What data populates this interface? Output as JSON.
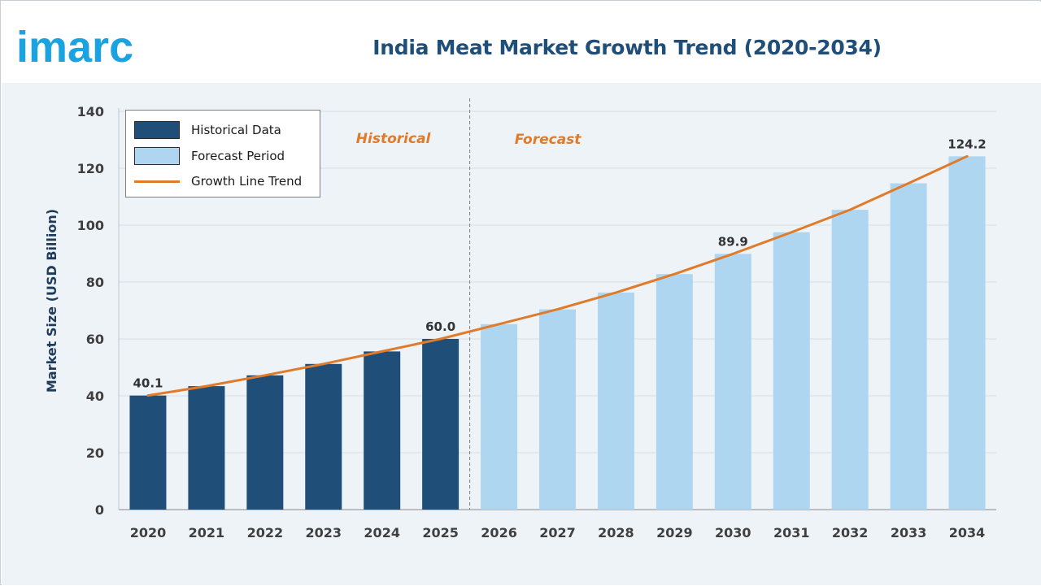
{
  "brand": {
    "name": "imarc",
    "color": "#1aa3e0"
  },
  "chart_data": {
    "type": "bar",
    "title": "India Meat Market Growth Trend (2020-2034)",
    "ylabel": "Market Size (USD Billion)",
    "xlabel": "",
    "ylim": [
      0,
      140
    ],
    "yticks": [
      0,
      20,
      40,
      60,
      80,
      100,
      120,
      140
    ],
    "categories": [
      "2020",
      "2021",
      "2022",
      "2023",
      "2024",
      "2025",
      "2026",
      "2027",
      "2028",
      "2029",
      "2030",
      "2031",
      "2032",
      "2033",
      "2034"
    ],
    "series": [
      {
        "name": "Historical Data",
        "color": "#1f4e79",
        "values": [
          40.1,
          43.4,
          47.2,
          51.2,
          55.6,
          60.0,
          null,
          null,
          null,
          null,
          null,
          null,
          null,
          null,
          null
        ]
      },
      {
        "name": "Forecast Period",
        "color": "#aed6f1",
        "values": [
          null,
          null,
          null,
          null,
          null,
          null,
          65.2,
          70.4,
          76.3,
          82.8,
          89.9,
          97.5,
          105.4,
          114.7,
          124.2
        ]
      },
      {
        "name": "Growth Line Trend",
        "type": "line",
        "color": "#e07b2a",
        "values": [
          40.1,
          43.4,
          47.2,
          51.2,
          55.6,
          60.0,
          65.2,
          70.4,
          76.3,
          82.8,
          89.9,
          97.5,
          105.4,
          114.7,
          124.2
        ]
      }
    ],
    "data_labels": [
      {
        "category": "2020",
        "text": "40.1"
      },
      {
        "category": "2025",
        "text": "60.0"
      },
      {
        "category": "2030",
        "text": "89.9"
      },
      {
        "category": "2034",
        "text": "124.2"
      }
    ],
    "period_labels": {
      "historical": "Historical",
      "forecast": "Forecast"
    },
    "legend": {
      "position": "top-left",
      "items": [
        "Historical Data",
        "Forecast Period",
        "Growth Line Trend"
      ]
    },
    "grid": true
  }
}
